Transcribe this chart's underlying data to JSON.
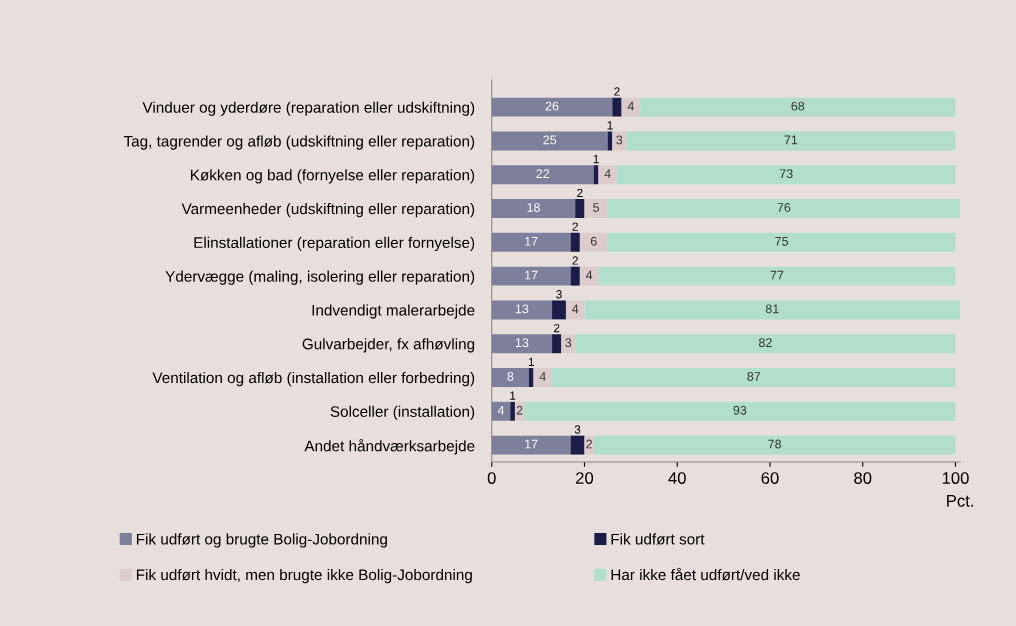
{
  "chart_data": {
    "type": "bar",
    "orientation": "horizontal",
    "stacked": true,
    "data_labels": true,
    "legend": "bottom",
    "grid": false,
    "xlabel": "Pct.",
    "xlim": [
      0,
      101
    ],
    "xticks": [
      0,
      20,
      40,
      60,
      80,
      100
    ],
    "categories": [
      "Vinduer og yderdøre (reparation eller udskiftning)",
      "Tag, tagrender og afløb (udskiftning eller reparation)",
      "Køkken og bad (fornyelse eller reparation)",
      "Varmeenheder (udskiftning eller reparation)",
      "Elinstallationer (reparation eller fornyelse)",
      "Ydervægge (maling, isolering eller reparation)",
      "Indvendigt malerarbejde",
      "Gulvarbejder, fx afhøvling",
      "Ventilation og afløb (installation eller forbedring)",
      "Solceller (installation)",
      "Andet håndværksarbejde"
    ],
    "series": [
      {
        "name": "Fik udført og brugte Bolig-Jobordning",
        "color": "#7d7f9b",
        "values": [
          26,
          25,
          22,
          18,
          17,
          17,
          13,
          13,
          8,
          4,
          17
        ]
      },
      {
        "name": "Fik udført sort",
        "color": "#1c1c48",
        "values": [
          2,
          1,
          1,
          2,
          2,
          2,
          3,
          2,
          1,
          1,
          3
        ]
      },
      {
        "name": "Fik udført hvidt, men brugte ikke Bolig-Jobordning",
        "color": "#dccccb",
        "values": [
          4,
          3,
          4,
          5,
          6,
          4,
          4,
          3,
          4,
          2,
          2
        ]
      },
      {
        "name": "Har ikke fået udført/ved ikke",
        "color": "#b2dfcd",
        "values": [
          68,
          71,
          73,
          76,
          75,
          77,
          81,
          82,
          87,
          93,
          78
        ]
      }
    ]
  }
}
